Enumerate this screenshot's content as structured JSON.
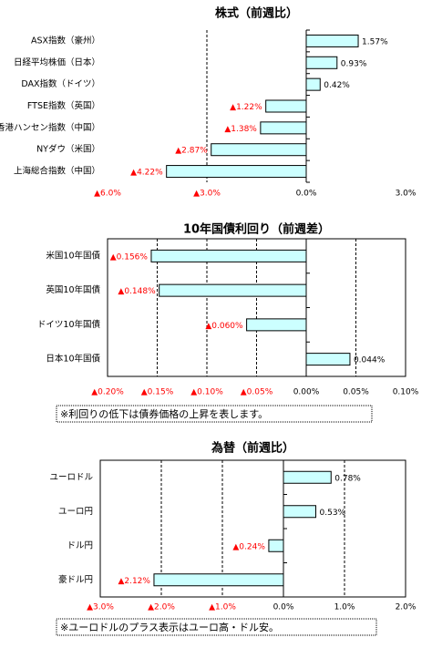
{
  "chart_data": [
    {
      "type": "hbar",
      "title": "株式（前週比）",
      "categories": [
        "ASX指数（豪州）",
        "日経平均株価（日本）",
        "DAX指数（ドイツ）",
        "FTSE指数（英国）",
        "香港ハンセン指数（中国）",
        "NYダウ（米国）",
        "上海総合指数（中国）"
      ],
      "values": [
        1.57,
        0.93,
        0.42,
        -1.22,
        -1.38,
        -2.87,
        -4.22
      ],
      "value_labels": [
        "1.57%",
        "0.93%",
        "0.42%",
        "▲1.22%",
        "▲1.38%",
        "▲2.87%",
        "▲4.22%"
      ],
      "color": "#ccffff",
      "negative_label_color": "#ff0000",
      "frame": false,
      "grid": true,
      "xlim": [
        -6,
        3
      ],
      "xticks": [
        {
          "value": -6,
          "label": "▲6.0%"
        },
        {
          "value": -3,
          "label": "▲3.0%"
        },
        {
          "value": 0,
          "label": "0.0%"
        },
        {
          "value": 3,
          "label": "3.0%"
        }
      ]
    },
    {
      "type": "hbar",
      "title": "10年国債利回り（前週差）",
      "categories": [
        "米国10年国債",
        "英国10年国債",
        "ドイツ10年国債",
        "日本10年国債"
      ],
      "values": [
        -0.156,
        -0.148,
        -0.06,
        0.044
      ],
      "value_labels": [
        "▲0.156%",
        "▲0.148%",
        "▲0.060%",
        "0.044%"
      ],
      "color": "#ccffff",
      "negative_label_color": "#ff0000",
      "frame": true,
      "grid": true,
      "xlim": [
        -0.2,
        0.1
      ],
      "xticks": [
        {
          "value": -0.2,
          "label": "▲0.20%"
        },
        {
          "value": -0.15,
          "label": "▲0.15%"
        },
        {
          "value": -0.1,
          "label": "▲0.10%"
        },
        {
          "value": -0.05,
          "label": "▲0.05%"
        },
        {
          "value": 0,
          "label": "0.00%"
        },
        {
          "value": 0.05,
          "label": "0.05%"
        },
        {
          "value": 0.1,
          "label": "0.10%"
        }
      ],
      "note": "※利回りの低下は債券価格の上昇を表します。"
    },
    {
      "type": "hbar",
      "title": "為替（前週比）",
      "categories": [
        "ユーロドル",
        "ユーロ円",
        "ドル円",
        "豪ドル円"
      ],
      "values": [
        0.78,
        0.53,
        -0.24,
        -2.12
      ],
      "value_labels": [
        "0.78%",
        "0.53%",
        "▲0.24%",
        "▲2.12%"
      ],
      "color": "#ccffff",
      "negative_label_color": "#ff0000",
      "frame": true,
      "grid": true,
      "xlim": [
        -3,
        2
      ],
      "xticks": [
        {
          "value": -3,
          "label": "▲3.0%"
        },
        {
          "value": -2,
          "label": "▲2.0%"
        },
        {
          "value": -1,
          "label": "▲1.0%"
        },
        {
          "value": 0,
          "label": "0.0%"
        },
        {
          "value": 1,
          "label": "1.0%"
        },
        {
          "value": 2,
          "label": "2.0%"
        }
      ],
      "note": "※ユーロドルのプラス表示はユーロ高・ドル安。"
    }
  ]
}
